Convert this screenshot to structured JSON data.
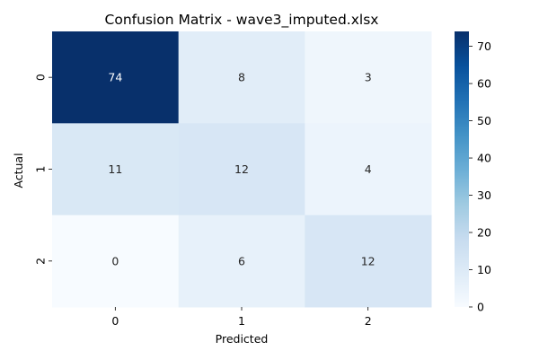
{
  "chart_data": {
    "type": "heatmap",
    "title": "Confusion Matrix - wave3_imputed.xlsx",
    "xlabel": "Predicted",
    "ylabel": "Actual",
    "x_categories": [
      "0",
      "1",
      "2"
    ],
    "y_categories": [
      "0",
      "1",
      "2"
    ],
    "values": [
      [
        74,
        8,
        3
      ],
      [
        11,
        12,
        4
      ],
      [
        0,
        6,
        12
      ]
    ],
    "colormap": "Blues",
    "colorbar": {
      "vmin": 0,
      "vmax": 74,
      "ticks": [
        0,
        10,
        20,
        30,
        40,
        50,
        60,
        70
      ]
    },
    "annotate_cells": true,
    "grid": false
  },
  "colors": {
    "low": "#f7fbff",
    "high": "#08306b",
    "text_on_dark": "#ffffff",
    "text_on_light": "#262626"
  }
}
